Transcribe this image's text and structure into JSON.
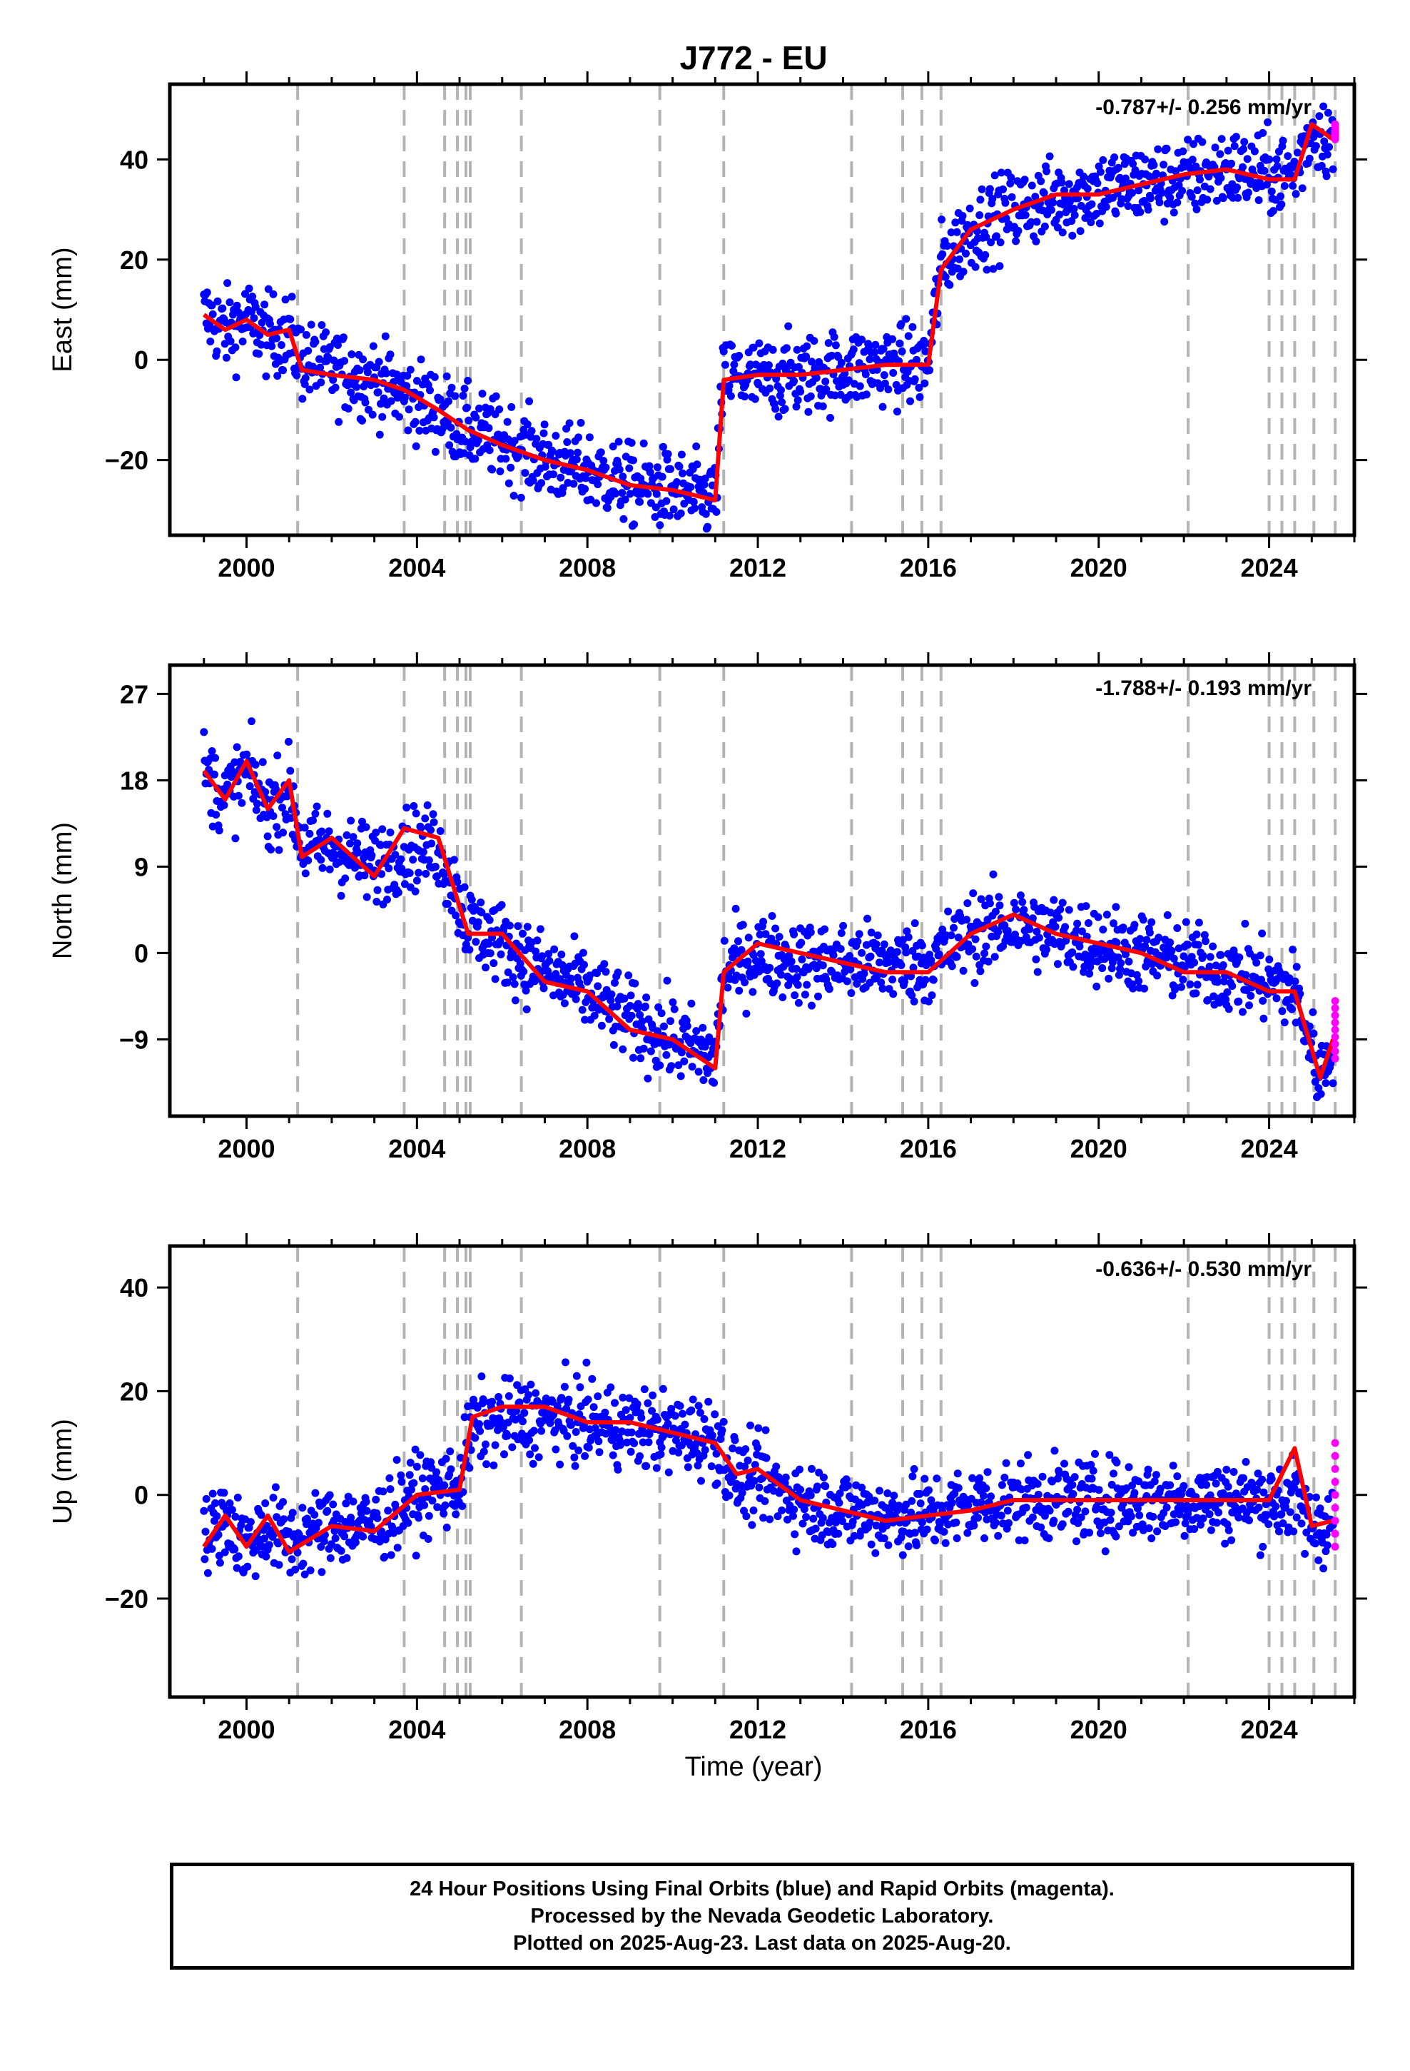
{
  "title": "J772 - EU",
  "xlabel": "Time (year)",
  "footer": {
    "line1": "24 Hour Positions Using Final Orbits (blue) and Rapid Orbits (magenta).",
    "line2": "Processed by the Nevada Geodetic Laboratory.",
    "line3": "Plotted on 2025-Aug-23. Last data on 2025-Aug-20."
  },
  "colors": {
    "final_points": "#0000ff",
    "rapid_points": "#ff00ff",
    "model": "#ff0000",
    "event_lines": "#b4b4b4"
  },
  "chart_data": [
    {
      "type": "scatter",
      "component": "east",
      "ylabel": "East (mm)",
      "rate_label": "-0.787+/- 0.256 mm/yr",
      "xlim": [
        1998.2,
        2026.0
      ],
      "ylim": [
        -35,
        55
      ],
      "yticks": [
        -20,
        0,
        20,
        40
      ],
      "xticks": [
        2000,
        2004,
        2008,
        2012,
        2016,
        2020,
        2024
      ],
      "grid": false,
      "event_lines": [
        2001.2,
        2003.7,
        2004.65,
        2004.95,
        2005.15,
        2005.25,
        2006.45,
        2009.7,
        2011.2,
        2014.2,
        2015.4,
        2015.85,
        2016.3,
        2022.1,
        2024.0,
        2024.3,
        2024.6,
        2025.05,
        2025.55
      ],
      "series": [
        {
          "kind": "final",
          "x": [
            1999.0,
            1999.5,
            2000.0,
            2000.5,
            2001.0,
            2001.3,
            2002.0,
            2003.0,
            2003.7,
            2004.5,
            2005.2,
            2006.0,
            2007.0,
            2008.0,
            2009.0,
            2010.0,
            2011.0,
            2011.2,
            2012.0,
            2013.0,
            2014.0,
            2015.0,
            2016.0,
            2016.3,
            2017.0,
            2018.0,
            2019.0,
            2020.0,
            2021.0,
            2022.0,
            2023.0,
            2024.0,
            2024.6,
            2025.0,
            2025.5
          ],
          "y": [
            9,
            6,
            8,
            5,
            5,
            0,
            -2,
            -4,
            -7,
            -10,
            -14,
            -16,
            -20,
            -22,
            -25,
            -26,
            -28,
            -3,
            -4,
            -3,
            -2,
            -1,
            -1,
            19,
            26,
            30,
            32,
            34,
            35,
            36,
            38,
            37,
            37,
            46,
            44
          ]
        },
        {
          "kind": "rapid",
          "x": [
            2025.55,
            2025.6
          ],
          "y": [
            47,
            44
          ]
        },
        {
          "kind": "model",
          "x": [
            1999.0,
            1999.5,
            2000.0,
            2000.5,
            2001.0,
            2001.3,
            2002.0,
            2003.0,
            2003.7,
            2004.5,
            2005.2,
            2006.0,
            2007.0,
            2008.0,
            2009.0,
            2010.0,
            2011.0,
            2011.2,
            2012.0,
            2013.0,
            2014.0,
            2015.0,
            2016.0,
            2016.3,
            2017.0,
            2018.0,
            2019.0,
            2020.0,
            2021.0,
            2022.0,
            2023.0,
            2024.0,
            2024.6,
            2025.0,
            2025.5
          ],
          "y": [
            9,
            6,
            8,
            5,
            6,
            -2,
            -3,
            -4,
            -6,
            -10,
            -14,
            -17,
            -20,
            -22,
            -25,
            -26,
            -28,
            -4,
            -3,
            -3,
            -2,
            -1,
            -1,
            18,
            26,
            30,
            33,
            33,
            35,
            37,
            38,
            36,
            36,
            47,
            44
          ]
        }
      ]
    },
    {
      "type": "scatter",
      "component": "north",
      "ylabel": "North (mm)",
      "rate_label": "-1.788+/- 0.193 mm/yr",
      "xlim": [
        1998.2,
        2026.0
      ],
      "ylim": [
        -17,
        30
      ],
      "yticks": [
        -9,
        0,
        9,
        18,
        27
      ],
      "xticks": [
        2000,
        2004,
        2008,
        2012,
        2016,
        2020,
        2024
      ],
      "grid": false,
      "event_lines": [
        2001.2,
        2003.7,
        2004.65,
        2004.95,
        2005.15,
        2005.25,
        2006.45,
        2009.7,
        2011.2,
        2014.2,
        2015.4,
        2015.85,
        2016.3,
        2022.1,
        2024.0,
        2024.3,
        2024.6,
        2025.05,
        2025.55
      ],
      "series": [
        {
          "kind": "final",
          "x": [
            1999.0,
            1999.5,
            2000.0,
            2000.5,
            2001.0,
            2001.3,
            2002.0,
            2003.0,
            2003.7,
            2004.5,
            2005.2,
            2006.0,
            2007.0,
            2008.0,
            2009.0,
            2010.0,
            2011.0,
            2011.2,
            2012.0,
            2013.0,
            2014.0,
            2015.0,
            2016.0,
            2017.0,
            2018.0,
            2019.0,
            2020.0,
            2021.0,
            2022.0,
            2023.0,
            2024.0,
            2024.6,
            2025.2,
            2025.5
          ],
          "y": [
            19,
            16,
            19,
            15,
            17,
            11,
            11,
            9,
            11,
            11,
            3,
            1,
            -2,
            -4,
            -7,
            -9,
            -11,
            -2,
            0,
            -1,
            -1,
            -1,
            -1,
            2,
            3,
            2,
            1,
            0,
            -1,
            -2,
            -3,
            -4,
            -13,
            -9
          ]
        },
        {
          "kind": "rapid",
          "x": [
            2025.55,
            2025.6
          ],
          "y": [
            -5,
            -11
          ]
        },
        {
          "kind": "model",
          "x": [
            1999.0,
            1999.5,
            2000.0,
            2000.5,
            2001.0,
            2001.3,
            2002.0,
            2003.0,
            2003.7,
            2004.5,
            2005.2,
            2006.0,
            2007.0,
            2008.0,
            2009.0,
            2010.0,
            2011.0,
            2011.2,
            2012.0,
            2013.0,
            2014.0,
            2015.0,
            2016.0,
            2017.0,
            2018.0,
            2019.0,
            2020.0,
            2021.0,
            2022.0,
            2023.0,
            2024.0,
            2024.6,
            2025.2,
            2025.5
          ],
          "y": [
            19,
            16,
            20,
            15,
            18,
            10,
            12,
            8,
            13,
            12,
            2,
            2,
            -3,
            -4,
            -8,
            -9,
            -12,
            -2,
            1,
            0,
            -1,
            -2,
            -2,
            2,
            4,
            2,
            1,
            0,
            -2,
            -2,
            -4,
            -4,
            -13,
            -9
          ]
        }
      ]
    },
    {
      "type": "scatter",
      "component": "up",
      "ylabel": "Up (mm)",
      "rate_label": "-0.636+/- 0.530 mm/yr",
      "xlim": [
        1998.2,
        2026.0
      ],
      "ylim": [
        -39,
        48
      ],
      "yticks": [
        -20,
        0,
        20,
        40
      ],
      "xticks": [
        2000,
        2004,
        2008,
        2012,
        2016,
        2020,
        2024
      ],
      "grid": false,
      "event_lines": [
        2001.2,
        2003.7,
        2004.65,
        2004.95,
        2005.15,
        2005.25,
        2006.45,
        2009.7,
        2011.2,
        2014.2,
        2015.4,
        2015.85,
        2016.3,
        2022.1,
        2024.0,
        2024.3,
        2024.6,
        2025.05,
        2025.55
      ],
      "series": [
        {
          "kind": "final",
          "x": [
            1999.0,
            1999.5,
            2000.0,
            2000.5,
            2001.0,
            2002.0,
            2003.0,
            2004.0,
            2005.0,
            2005.3,
            2006.0,
            2007.0,
            2008.0,
            2009.0,
            2010.0,
            2011.0,
            2011.5,
            2012.0,
            2013.0,
            2014.0,
            2015.0,
            2016.0,
            2017.0,
            2018.0,
            2019.0,
            2020.0,
            2021.0,
            2022.0,
            2023.0,
            2024.0,
            2024.6,
            2025.0,
            2025.5
          ],
          "y": [
            -9,
            -4,
            -10,
            -6,
            -9,
            -6,
            -6,
            0,
            2,
            13,
            14,
            15,
            14,
            13,
            12,
            11,
            3,
            3,
            -1,
            -3,
            -4,
            -4,
            -2,
            -1,
            -1,
            -1,
            -1,
            -1,
            -1,
            -1,
            -1,
            -6,
            -5
          ]
        },
        {
          "kind": "rapid",
          "x": [
            2025.55,
            2025.6
          ],
          "y": [
            10,
            -10
          ]
        },
        {
          "kind": "model",
          "x": [
            1999.0,
            1999.5,
            2000.0,
            2000.5,
            2001.0,
            2002.0,
            2003.0,
            2004.0,
            2005.0,
            2005.3,
            2006.0,
            2007.0,
            2008.0,
            2009.0,
            2010.0,
            2011.0,
            2011.5,
            2012.0,
            2013.0,
            2014.0,
            2015.0,
            2016.0,
            2017.0,
            2018.0,
            2019.0,
            2020.0,
            2021.0,
            2022.0,
            2023.0,
            2024.0,
            2024.6,
            2025.0,
            2025.5
          ],
          "y": [
            -10,
            -4,
            -10,
            -4,
            -11,
            -6,
            -7,
            0,
            1,
            15,
            17,
            17,
            14,
            14,
            12,
            10,
            4,
            5,
            -1,
            -3,
            -5,
            -4,
            -3,
            -1,
            -1,
            -1,
            -1,
            -1,
            -1,
            -1,
            9,
            -6,
            -5
          ]
        }
      ]
    }
  ]
}
